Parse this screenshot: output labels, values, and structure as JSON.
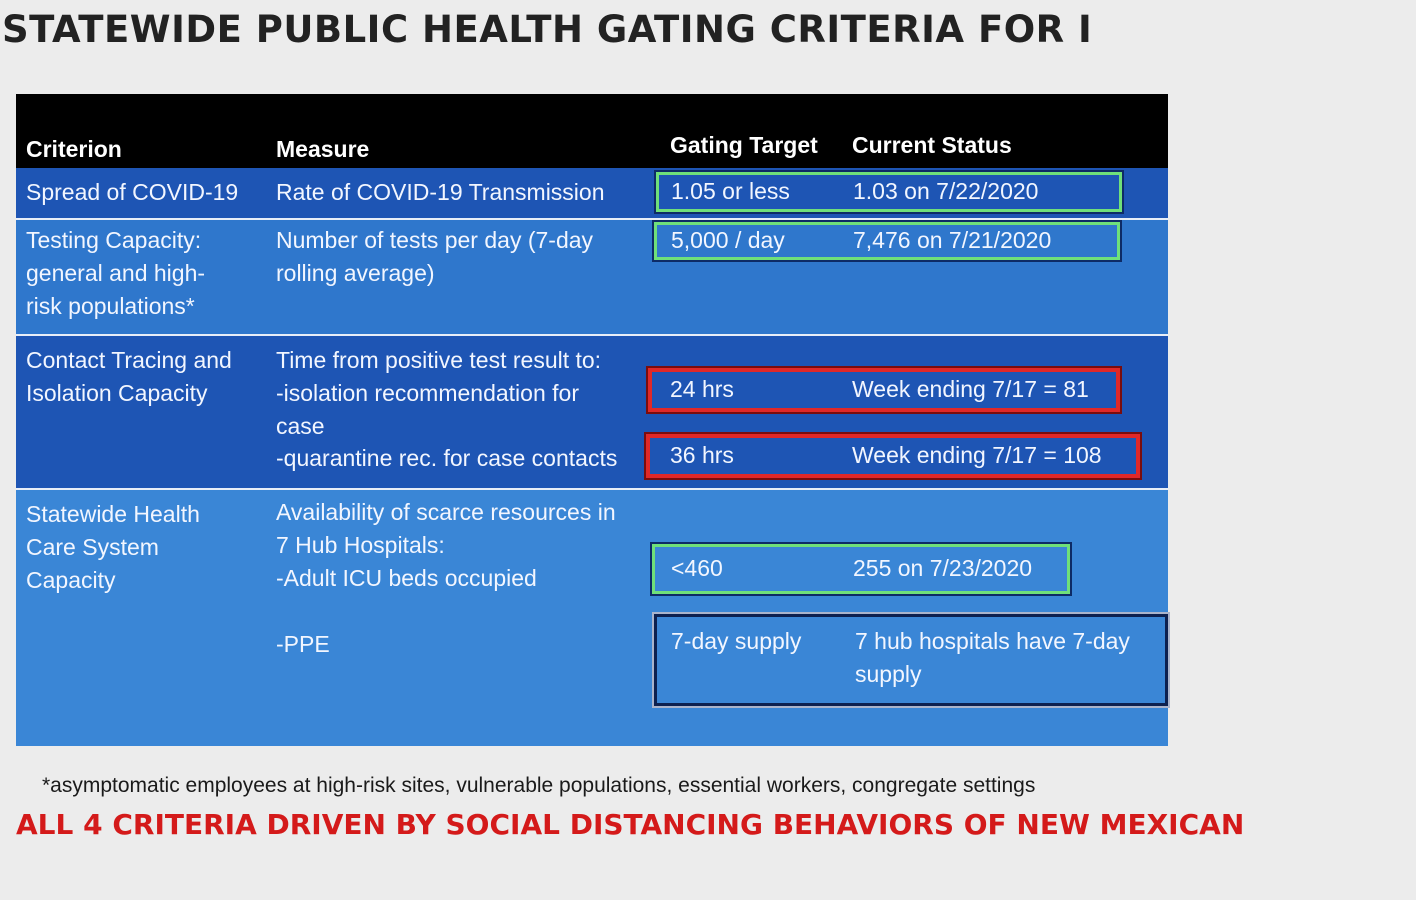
{
  "title": "STATEWIDE PUBLIC HEALTH GATING CRITERIA FOR I",
  "headers": {
    "criterion": "Criterion",
    "measure": "Measure",
    "target": "Gating Target",
    "status": "Current Status"
  },
  "rows": [
    {
      "criterion": [
        "Spread of COVID-19"
      ],
      "measure": [
        "Rate of COVID-19 Transmission"
      ],
      "target": "1.05 or less",
      "status": "1.03 on 7/22/2020",
      "box_color": "green"
    },
    {
      "criterion": [
        "Testing Capacity:",
        "general and high-",
        "risk populations*"
      ],
      "measure": [
        "Number of tests per day (7-day",
        "rolling average)"
      ],
      "target": "5,000 / day",
      "status": "7,476 on 7/21/2020",
      "box_color": "green"
    },
    {
      "criterion": [
        "Contact Tracing and",
        "Isolation Capacity"
      ],
      "measure": [
        "Time from positive test result to:",
        "-isolation recommendation for",
        "case",
        "-quarantine rec. for case contacts"
      ],
      "subrows": [
        {
          "target": "24 hrs",
          "status": "Week ending 7/17 = 81",
          "box_color": "red"
        },
        {
          "target": "36 hrs",
          "status": "Week ending 7/17 = 108",
          "box_color": "red"
        }
      ]
    },
    {
      "criterion": [
        "Statewide Health",
        "Care System",
        "Capacity"
      ],
      "measure": [
        "Availability of scarce resources in",
        "7 Hub Hospitals:",
        "-Adult ICU beds occupied",
        "-PPE"
      ],
      "subrows": [
        {
          "target": "<460",
          "status": "255 on 7/23/2020",
          "box_color": "green"
        },
        {
          "target": "7-day supply",
          "status": [
            "7 hub hospitals have 7-day",
            "supply"
          ],
          "box_color": "navy"
        }
      ]
    }
  ],
  "footnote": "*asymptomatic employees at high-risk sites, vulnerable populations, essential workers, congregate settings",
  "banner": "ALL 4 CRITERIA DRIVEN BY SOCIAL DISTANCING BEHAVIORS OF NEW MEXICAN",
  "colors": {
    "header": "#000000",
    "band_dark": "#1e55b4",
    "band_mid": "#2f77cc",
    "band_light": "#3a86d6",
    "met": "#6fe07a",
    "not_met": "#e02828",
    "banner": "#d41a1a"
  }
}
